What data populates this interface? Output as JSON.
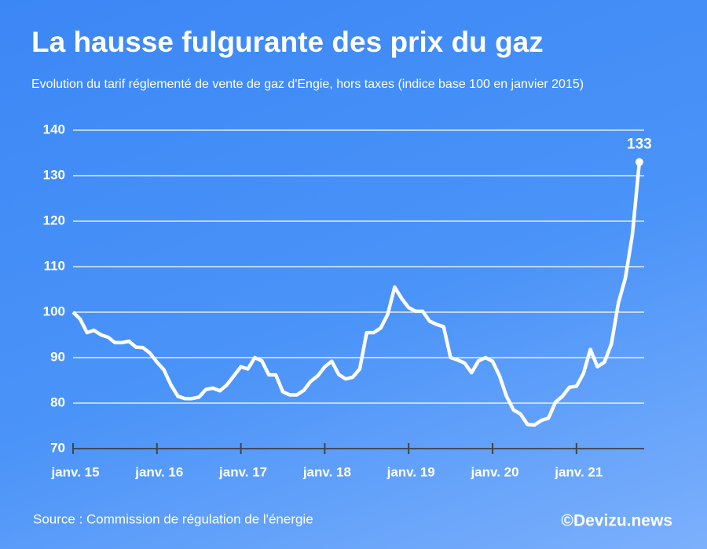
{
  "chart_data": {
    "type": "line",
    "title": "La hausse fulgurante des prix du gaz",
    "subtitle": "Evolution du tarif réglementé de vente de gaz d'Engie, hors taxes (indice base 100 en janvier 2015)",
    "source": "Source : Commission de régulation de l'énergie",
    "credit": "©Devizu.news",
    "categories": [
      "janv. 15",
      null,
      null,
      null,
      null,
      null,
      null,
      null,
      null,
      null,
      null,
      null,
      "janv. 16",
      null,
      null,
      null,
      null,
      null,
      null,
      null,
      null,
      null,
      null,
      null,
      "janv. 17",
      null,
      null,
      null,
      null,
      null,
      null,
      null,
      null,
      null,
      null,
      null,
      "janv. 18",
      null,
      null,
      null,
      null,
      null,
      null,
      null,
      null,
      null,
      null,
      null,
      "janv. 19",
      null,
      null,
      null,
      null,
      null,
      null,
      null,
      null,
      null,
      null,
      null,
      "janv. 20",
      null,
      null,
      null,
      null,
      null,
      null,
      null,
      null,
      null,
      null,
      null,
      "janv. 21",
      null,
      null,
      null,
      null,
      null,
      null,
      null,
      null,
      null
    ],
    "series": [
      {
        "color": "#ffffff",
        "values": [
          100,
          98.5,
          95.5,
          96,
          95,
          94.5,
          93.3,
          93.3,
          93.6,
          92.3,
          92.2,
          91,
          89,
          87.3,
          84,
          81.5,
          81,
          81,
          81.3,
          83,
          83.3,
          82.7,
          84,
          86,
          88,
          87.5,
          90,
          89.3,
          86.2,
          86.2,
          82.5,
          81.8,
          81.8,
          82.8,
          84.8,
          86,
          88,
          89.2,
          86.3,
          85.3,
          85.7,
          87.5,
          95.5,
          95.5,
          96.5,
          99.5,
          105.5,
          103,
          101,
          100.2,
          100.2,
          98,
          97.3,
          96.8,
          90,
          89.5,
          88.8,
          86.7,
          89.3,
          90,
          89.2,
          86,
          81.5,
          78.5,
          77.6,
          75.3,
          75.2,
          76.2,
          76.7,
          80.2,
          81.5,
          83.5,
          83.7,
          86.5,
          91.8,
          88,
          89,
          93,
          102,
          107.5,
          117,
          133
        ]
      }
    ],
    "ylim": [
      70,
      140
    ],
    "yticks": [
      70,
      80,
      90,
      100,
      110,
      120,
      130,
      140
    ],
    "grid": true
  }
}
